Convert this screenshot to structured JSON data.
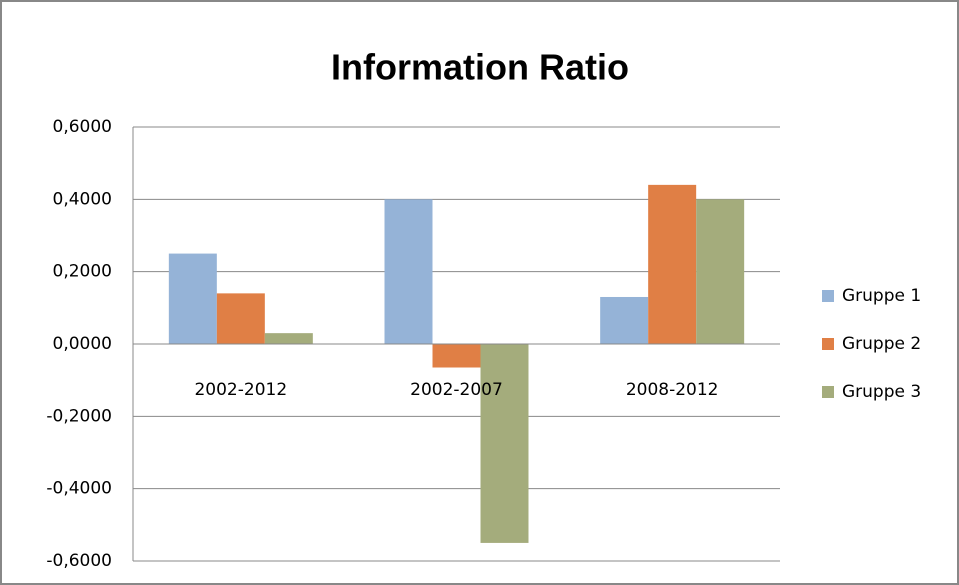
{
  "chart_data": {
    "type": "bar",
    "title": "Information Ratio",
    "categories": [
      "2002-2012",
      "2002-2007",
      "2008-2012"
    ],
    "series": [
      {
        "name": "Gruppe 1",
        "color": "#95b3d7",
        "values": [
          0.25,
          0.4,
          0.13
        ]
      },
      {
        "name": "Gruppe 2",
        "color": "#e07f45",
        "values": [
          0.14,
          -0.065,
          0.44
        ]
      },
      {
        "name": "Gruppe 3",
        "color": "#a4ac7c",
        "values": [
          0.03,
          -0.55,
          0.4
        ]
      }
    ],
    "ylim": [
      -0.6,
      0.6
    ],
    "yticks": [
      {
        "value": -0.6,
        "label": "-0,6000"
      },
      {
        "value": -0.4,
        "label": "-0,4000"
      },
      {
        "value": -0.2,
        "label": "-0,2000"
      },
      {
        "value": 0,
        "label": "0,0000"
      },
      {
        "value": 0.2,
        "label": "0,2000"
      },
      {
        "value": 0.4,
        "label": "0,4000"
      },
      {
        "value": 0.6,
        "label": "0,6000"
      }
    ],
    "grid": true,
    "legend": "right"
  }
}
